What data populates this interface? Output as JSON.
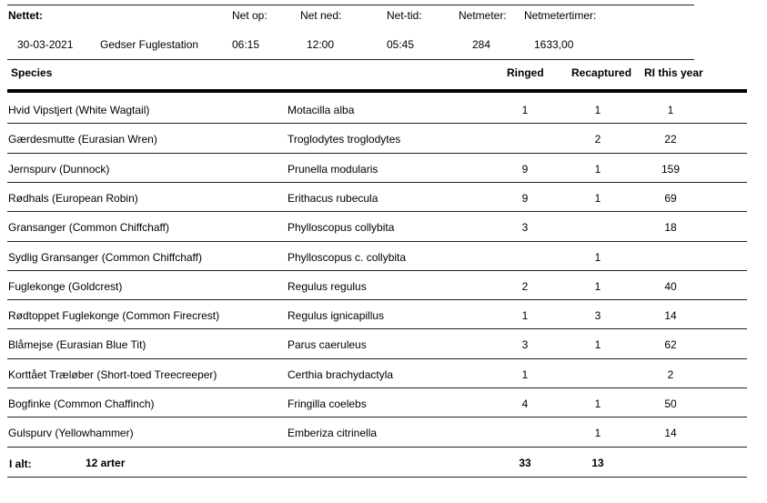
{
  "header": {
    "nettet_label": "Nettet:",
    "net_op_label": "Net op:",
    "net_ned_label": "Net ned:",
    "net_tid_label": "Net-tid:",
    "netmeter_label": "Netmeter:",
    "netmetertimer_label": "Netmetertimer:",
    "date": "30-03-2021",
    "station": "Gedser Fuglestation",
    "net_op": "06:15",
    "net_ned": "12:00",
    "net_tid": "05:45",
    "netmeter": "284",
    "netmetertimer": "1633,00"
  },
  "columns": {
    "species": "Species",
    "ringed": "Ringed",
    "recaptured": "Recaptured",
    "ri_this_year": "RI this year"
  },
  "rows": [
    {
      "name": "Hvid Vipstjert   (White Wagtail)",
      "latin": "Motacilla alba",
      "ringed": "1",
      "recaptured": "1",
      "ri": "1"
    },
    {
      "name": "Gærdesmutte   (Eurasian Wren)",
      "latin": "Troglodytes troglodytes",
      "ringed": "",
      "recaptured": "2",
      "ri": "22"
    },
    {
      "name": "Jernspurv   (Dunnock)",
      "latin": "Prunella modularis",
      "ringed": "9",
      "recaptured": "1",
      "ri": "159"
    },
    {
      "name": "Rødhals   (European Robin)",
      "latin": "Erithacus rubecula",
      "ringed": "9",
      "recaptured": "1",
      "ri": "69"
    },
    {
      "name": "Gransanger   (Common Chiffchaff)",
      "latin": "Phylloscopus collybita",
      "ringed": "3",
      "recaptured": "",
      "ri": "18"
    },
    {
      "name": "Sydlig Gransanger   (Common Chiffchaff)",
      "latin": "Phylloscopus c. collybita",
      "ringed": "",
      "recaptured": "1",
      "ri": ""
    },
    {
      "name": "Fuglekonge   (Goldcrest)",
      "latin": "Regulus regulus",
      "ringed": "2",
      "recaptured": "1",
      "ri": "40"
    },
    {
      "name": "Rødtoppet Fuglekonge   (Common Firecrest)",
      "latin": "Regulus ignicapillus",
      "ringed": "1",
      "recaptured": "3",
      "ri": "14"
    },
    {
      "name": "Blåmejse   (Eurasian Blue Tit)",
      "latin": "Parus caeruleus",
      "ringed": "3",
      "recaptured": "1",
      "ri": "62"
    },
    {
      "name": "Korttået Træløber   (Short-toed Treecreeper)",
      "latin": "Certhia brachydactyla",
      "ringed": "1",
      "recaptured": "",
      "ri": "2"
    },
    {
      "name": "Bogfinke   (Common Chaffinch)",
      "latin": "Fringilla coelebs",
      "ringed": "4",
      "recaptured": "1",
      "ri": "50"
    },
    {
      "name": "Gulspurv   (Yellowhammer)",
      "latin": "Emberiza citrinella",
      "ringed": "",
      "recaptured": "1",
      "ri": "14"
    }
  ],
  "totals": {
    "label": "I alt:",
    "species_count": "12 arter",
    "ringed": "33",
    "recaptured": "13"
  }
}
